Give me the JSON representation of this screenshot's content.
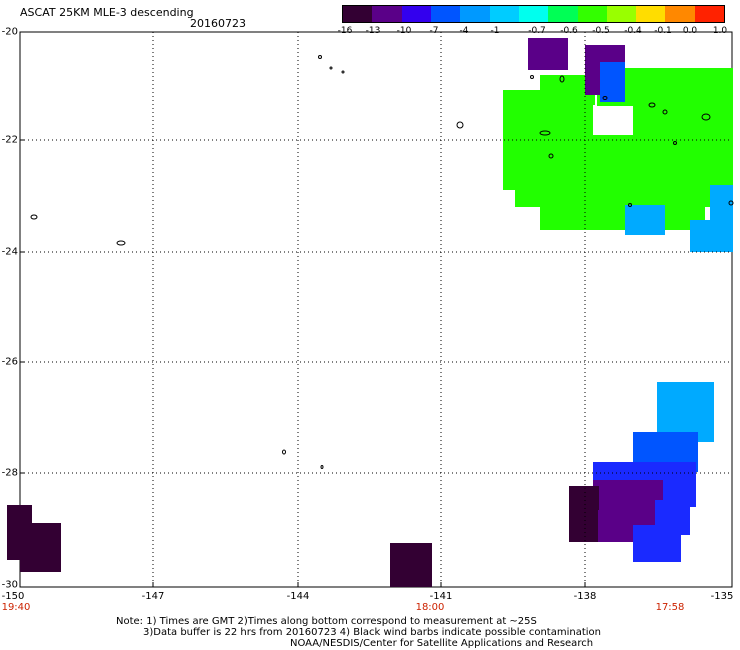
{
  "header": {
    "title": "ASCAT 25KM MLE-3 descending",
    "date": "20160723"
  },
  "colorbar": {
    "ticks": [
      "-16",
      "-13",
      "-10",
      "-7",
      "-4",
      "-1",
      "-0.7",
      "-0.6",
      "-0.5",
      "-0.4",
      "-0.1",
      "0.0",
      "1.0"
    ],
    "colors": [
      "#330033",
      "#5a0088",
      "#3300ee",
      "#0055ff",
      "#0099ff",
      "#00ccff",
      "#00ffee",
      "#00ff55",
      "#33ff00",
      "#99ff00",
      "#ffdd00",
      "#ff8800",
      "#ff2200"
    ]
  },
  "map": {
    "x_ticks": [
      "-150",
      "-147",
      "-144",
      "-141",
      "-138",
      "-135"
    ],
    "y_ticks": [
      "-20",
      "-22",
      "-24",
      "-26",
      "-28",
      "-30"
    ],
    "time_labels": [
      "19:40",
      "18:00",
      "17:58"
    ],
    "time_color": "#cc2200",
    "data_colors": {
      "dark_purple": "#330033",
      "purple": "#5a0088",
      "blue": "#1a2aff",
      "mid_blue": "#0055ff",
      "light_blue": "#00aaff",
      "green": "#22ff00"
    }
  },
  "notes": {
    "line1": "Note: 1) Times are GMT 2)Times along bottom correspond to measurement at ~25S",
    "line2": "3)Data buffer is 22 hrs from 20160723 4) Black wind barbs indicate possible contamination",
    "line3": "NOAA/NESDIS/Center for Satellite Applications and Research"
  }
}
